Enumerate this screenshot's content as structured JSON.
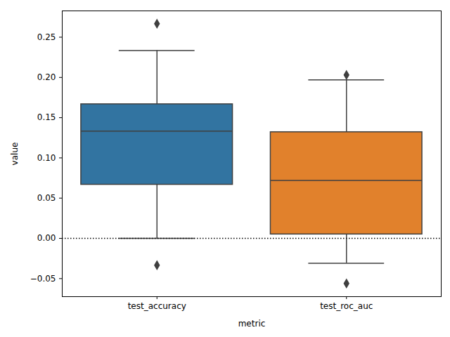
{
  "chart_data": {
    "type": "box",
    "x_label": "metric",
    "y_label": "value",
    "categories": [
      "test_accuracy",
      "test_roc_auc"
    ],
    "colors": [
      "#3274a1",
      "#e1812c"
    ],
    "whisker_low": [
      0.0,
      -0.031
    ],
    "q1": [
      0.0667,
      0.005
    ],
    "median": [
      0.1333,
      0.072
    ],
    "q3": [
      0.1667,
      0.132
    ],
    "whisker_high": [
      0.2333,
      0.197
    ],
    "outliers": [
      [
        0.2667,
        -0.0333
      ],
      [
        0.203,
        -0.056
      ]
    ],
    "hline": 0,
    "ylim": [
      -0.0724,
      0.2827
    ],
    "yticks": [
      {
        "value": -0.05,
        "label": "−0.05"
      },
      {
        "value": 0,
        "label": "0.00"
      },
      0.05,
      {
        "value": 0.1,
        "label": "0.10"
      },
      0.15,
      {
        "value": 0.2,
        "label": "0.20"
      },
      0.25
    ],
    "grid": false
  }
}
